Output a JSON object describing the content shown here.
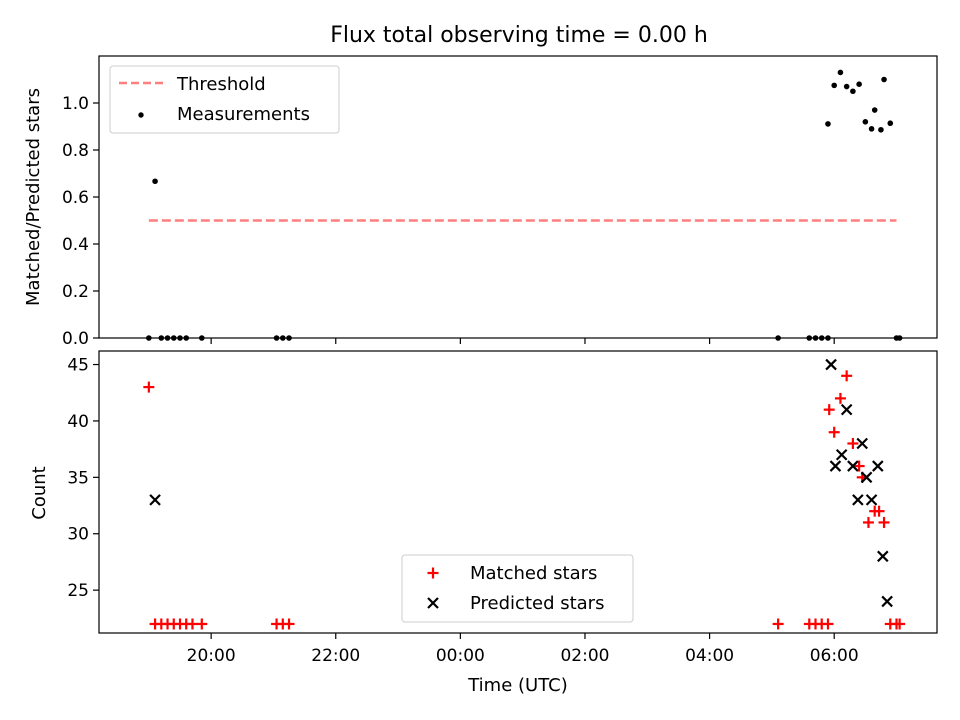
{
  "figure": {
    "title": "Flux total observing time = 0.00 h"
  },
  "colors": {
    "threshold": "#ff7f7f",
    "measurements": "#000000",
    "matched": "#ff0000",
    "predicted": "#000000"
  },
  "chart_data": [
    {
      "type": "scatter",
      "title": "Flux total observing time = 0.00 h",
      "xlabel": "",
      "ylabel": "Matched/Predicted stars",
      "x_unit": "hours since 00:00 UTC",
      "xlim": [
        -5.8,
        7.65
      ],
      "ylim": [
        0.0,
        1.2
      ],
      "y_ticks": [
        {
          "value": 0.0,
          "label": "0.0"
        },
        {
          "value": 0.2,
          "label": "0.2"
        },
        {
          "value": 0.4,
          "label": "0.4"
        },
        {
          "value": 0.6,
          "label": "0.6"
        },
        {
          "value": 0.8,
          "label": "0.8"
        },
        {
          "value": 1.0,
          "label": "1.0"
        }
      ],
      "legend": {
        "placement": "upper-left",
        "entries": [
          {
            "label": "Threshold",
            "marker": "dashed-line",
            "color": "#ff7f7f"
          },
          {
            "label": "Measurements",
            "marker": "dot",
            "color": "#000000"
          }
        ]
      },
      "threshold": {
        "name": "Threshold",
        "y": 0.5,
        "x_start": -5.0,
        "x_end": 7.0
      },
      "series": [
        {
          "name": "Measurements",
          "marker": "dot",
          "points": [
            [
              -5.0,
              0.0
            ],
            [
              -4.9,
              0.667
            ],
            [
              -4.8,
              0.0
            ],
            [
              -4.7,
              0.0
            ],
            [
              -4.6,
              0.0
            ],
            [
              -4.5,
              0.0
            ],
            [
              -4.4,
              0.0
            ],
            [
              -4.15,
              0.0
            ],
            [
              -2.95,
              0.0
            ],
            [
              -2.85,
              0.0
            ],
            [
              -2.75,
              0.0
            ],
            [
              5.1,
              0.0
            ],
            [
              5.6,
              0.0
            ],
            [
              5.7,
              0.0
            ],
            [
              5.8,
              0.0
            ],
            [
              5.9,
              0.0
            ],
            [
              5.9,
              0.911
            ],
            [
              6.0,
              1.075
            ],
            [
              6.1,
              1.13
            ],
            [
              6.2,
              1.07
            ],
            [
              6.3,
              1.05
            ],
            [
              6.4,
              1.08
            ],
            [
              6.5,
              0.92
            ],
            [
              6.6,
              0.89
            ],
            [
              6.65,
              0.97
            ],
            [
              6.75,
              0.886
            ],
            [
              6.8,
              1.1
            ],
            [
              6.9,
              0.914
            ],
            [
              7.0,
              0.0
            ],
            [
              7.05,
              0.0
            ]
          ]
        }
      ]
    },
    {
      "type": "scatter",
      "title": "",
      "xlabel": "Time (UTC)",
      "ylabel": "Count",
      "x_unit": "hours since 00:00 UTC",
      "xlim": [
        -5.8,
        7.65
      ],
      "ylim": [
        21.2,
        46.2
      ],
      "y_ticks": [
        {
          "value": 25,
          "label": "25"
        },
        {
          "value": 30,
          "label": "30"
        },
        {
          "value": 35,
          "label": "35"
        },
        {
          "value": 40,
          "label": "40"
        },
        {
          "value": 45,
          "label": "45"
        }
      ],
      "x_ticks": [
        {
          "value": -4,
          "label": "20:00"
        },
        {
          "value": -2,
          "label": "22:00"
        },
        {
          "value": 0,
          "label": "00:00"
        },
        {
          "value": 2,
          "label": "02:00"
        },
        {
          "value": 4,
          "label": "04:00"
        },
        {
          "value": 6,
          "label": "06:00"
        }
      ],
      "legend": {
        "placement": "lower-center",
        "entries": [
          {
            "label": "Matched stars",
            "marker": "plus",
            "color": "#ff0000"
          },
          {
            "label": "Predicted stars",
            "marker": "cross",
            "color": "#000000"
          }
        ]
      },
      "series": [
        {
          "name": "Matched stars",
          "marker": "plus",
          "points": [
            [
              -5.0,
              43
            ],
            [
              -4.9,
              22
            ],
            [
              -4.8,
              22
            ],
            [
              -4.7,
              22
            ],
            [
              -4.6,
              22
            ],
            [
              -4.5,
              22
            ],
            [
              -4.4,
              22
            ],
            [
              -4.3,
              22
            ],
            [
              -4.15,
              22
            ],
            [
              -2.95,
              22
            ],
            [
              -2.85,
              22
            ],
            [
              -2.75,
              22
            ],
            [
              5.1,
              22
            ],
            [
              5.6,
              22
            ],
            [
              5.7,
              22
            ],
            [
              5.8,
              22
            ],
            [
              5.9,
              22
            ],
            [
              5.92,
              41
            ],
            [
              6.0,
              39
            ],
            [
              6.1,
              42
            ],
            [
              6.2,
              44
            ],
            [
              6.3,
              38
            ],
            [
              6.4,
              36
            ],
            [
              6.45,
              35
            ],
            [
              6.55,
              31
            ],
            [
              6.65,
              32
            ],
            [
              6.72,
              32
            ],
            [
              6.8,
              31
            ],
            [
              6.9,
              22
            ],
            [
              7.0,
              22
            ],
            [
              7.05,
              22
            ]
          ]
        },
        {
          "name": "Predicted stars",
          "marker": "cross",
          "points": [
            [
              -4.9,
              33
            ],
            [
              5.95,
              45
            ],
            [
              6.02,
              36
            ],
            [
              6.12,
              37
            ],
            [
              6.2,
              41
            ],
            [
              6.3,
              36
            ],
            [
              6.38,
              33
            ],
            [
              6.45,
              38
            ],
            [
              6.52,
              35
            ],
            [
              6.6,
              33
            ],
            [
              6.7,
              36
            ],
            [
              6.78,
              28
            ],
            [
              6.85,
              24
            ]
          ]
        }
      ]
    }
  ]
}
